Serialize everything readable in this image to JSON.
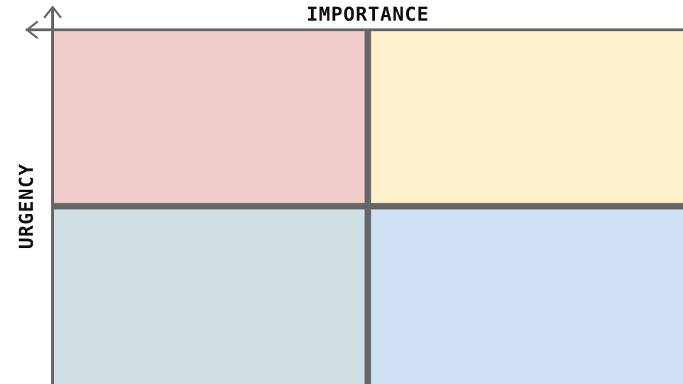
{
  "axes": {
    "horizontal_label": "IMPORTANCE",
    "vertical_label": "URGENCY"
  },
  "colors": {
    "axis": "#666666",
    "divider": "#666666",
    "top_left": "#f3cccc",
    "top_right": "#fff0cc",
    "bottom_left": "#cfdfe3",
    "bottom_right": "#cfe0f2"
  }
}
